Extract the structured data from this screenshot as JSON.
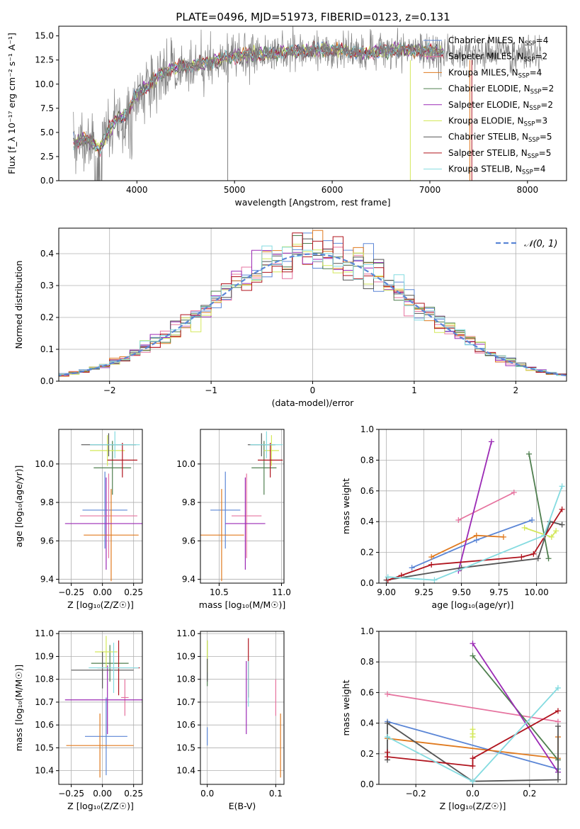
{
  "figure_title": "PLATE=0496, MJD=51973, FIBERID=0123, z=0.131",
  "models": [
    {
      "name": "Chabrier MILES",
      "nssp": "4",
      "color": "#5b86d6"
    },
    {
      "name": "Salpeter MILES",
      "nssp": "2",
      "color": "#e6739f"
    },
    {
      "name": "Kroupa MILES",
      "nssp": "4",
      "color": "#e07a1f"
    },
    {
      "name": "Chabrier ELODIE",
      "nssp": "2",
      "color": "#4f7f4f"
    },
    {
      "name": "Salpeter ELODIE",
      "nssp": "2",
      "color": "#9b2ab5"
    },
    {
      "name": "Kroupa ELODIE",
      "nssp": "3",
      "color": "#d4e85a"
    },
    {
      "name": "Chabrier STELIB",
      "nssp": "5",
      "color": "#555555"
    },
    {
      "name": "Salpeter STELIB",
      "nssp": "5",
      "color": "#b0141e"
    },
    {
      "name": "Kroupa STELIB",
      "nssp": "4",
      "color": "#84dbe0"
    }
  ],
  "chart_data": [
    {
      "id": "spectrum",
      "type": "line",
      "xlabel": "wavelength [Angstrom, rest frame]",
      "ylabel": "Flux [f_λ 10⁻¹⁷ erg cm⁻² s⁻¹ A⁻¹]",
      "xlim": [
        3200,
        8400
      ],
      "ylim": [
        0,
        16
      ],
      "xticks": [
        4000,
        5000,
        6000,
        7000,
        8000
      ],
      "yticks": [
        0.0,
        2.5,
        5.0,
        7.5,
        10.0,
        12.5,
        15.0
      ],
      "data_color": "#808080",
      "data_curve": {
        "x": [
          3350,
          3450,
          3550,
          3620,
          3700,
          3800,
          3900,
          3980,
          4100,
          4200,
          4350,
          4500,
          4700,
          4900,
          5100,
          5300,
          5500,
          5700,
          5900,
          6100,
          6300,
          6500,
          6700,
          6900,
          7100,
          7300,
          7500,
          7700,
          7900,
          8100
        ],
        "y": [
          3.9,
          4.3,
          4.0,
          3.2,
          5.0,
          6.5,
          6.8,
          8.8,
          9.6,
          10.8,
          11.6,
          11.8,
          12.2,
          12.7,
          13.1,
          13.0,
          13.3,
          13.4,
          13.6,
          13.5,
          13.2,
          13.4,
          13.6,
          13.5,
          13.3,
          13.1,
          13.2,
          13.3,
          13.1,
          13.0
        ]
      }
    },
    {
      "id": "residuals",
      "type": "step-histogram",
      "xlabel": "(data-model)/error",
      "ylabel": "Normed distribution",
      "xlim": [
        -2.5,
        2.5
      ],
      "ylim": [
        0,
        0.48
      ],
      "xticks": [
        -2,
        -1,
        0,
        1,
        2
      ],
      "yticks": [
        0.0,
        0.1,
        0.2,
        0.3,
        0.4
      ],
      "bin_width": 0.1,
      "curve_label": "𝒩(0, 1)",
      "curve_color": "#5b86d6"
    },
    {
      "id": "age-vs-Z",
      "type": "errorbar",
      "xlabel": "Z [log₁₀(Z/Z☉)]",
      "ylabel": "age  [log₁₀(age/yr)]",
      "xlim": [
        -0.35,
        0.32
      ],
      "ylim": [
        9.38,
        10.18
      ],
      "xticks": [
        -0.25,
        0.0,
        0.25
      ],
      "yticks": [
        9.4,
        9.6,
        9.8,
        10.0
      ],
      "points": [
        {
          "x": 0.02,
          "xerr": 0.18,
          "y": 9.76,
          "yerr": 0.2
        },
        {
          "x": 0.05,
          "xerr": 0.23,
          "y": 9.73,
          "yerr": 0.22
        },
        {
          "x": 0.07,
          "xerr": 0.22,
          "y": 9.63,
          "yerr": 0.24
        },
        {
          "x": 0.08,
          "xerr": 0.15,
          "y": 9.98,
          "yerr": 0.14
        },
        {
          "x": 0.03,
          "xerr": 0.33,
          "y": 9.69,
          "yerr": 0.24
        },
        {
          "x": 0.04,
          "xerr": 0.14,
          "y": 10.07,
          "yerr": 0.08
        },
        {
          "x": 0.05,
          "xerr": 0.22,
          "y": 10.1,
          "yerr": 0.06
        },
        {
          "x": 0.16,
          "xerr": 0.12,
          "y": 10.02,
          "yerr": 0.09
        },
        {
          "x": 0.1,
          "xerr": 0.2,
          "y": 10.1,
          "yerr": 0.07
        }
      ]
    },
    {
      "id": "age-vs-mass",
      "type": "errorbar",
      "xlabel": "mass [log₁₀(M/M☉)]",
      "ylabel": "",
      "xlim": [
        10.35,
        11.02
      ],
      "ylim": [
        9.38,
        10.18
      ],
      "xticks": [
        10.5,
        11.0
      ],
      "yticks": [
        9.4,
        9.6,
        9.8,
        10.0
      ],
      "points": [
        {
          "x": 10.55,
          "xerr": 0.12,
          "y": 9.76,
          "yerr": 0.2
        },
        {
          "x": 10.72,
          "xerr": 0.12,
          "y": 9.73,
          "yerr": 0.22
        },
        {
          "x": 10.52,
          "xerr": 0.18,
          "y": 9.63,
          "yerr": 0.24
        },
        {
          "x": 10.86,
          "xerr": 0.1,
          "y": 9.98,
          "yerr": 0.14
        },
        {
          "x": 10.71,
          "xerr": 0.16,
          "y": 9.69,
          "yerr": 0.24
        },
        {
          "x": 10.92,
          "xerr": 0.06,
          "y": 10.07,
          "yerr": 0.08
        },
        {
          "x": 10.84,
          "xerr": 0.11,
          "y": 10.1,
          "yerr": 0.06
        },
        {
          "x": 10.91,
          "xerr": 0.1,
          "y": 10.02,
          "yerr": 0.09
        },
        {
          "x": 10.88,
          "xerr": 0.13,
          "y": 10.1,
          "yerr": 0.07
        }
      ]
    },
    {
      "id": "mass-weight-vs-age",
      "type": "line",
      "xlabel": "age  [log₁₀(age/yr)]",
      "ylabel": "mass weight",
      "xlim": [
        8.95,
        10.2
      ],
      "ylim": [
        0,
        1.0
      ],
      "xticks": [
        9.0,
        9.25,
        9.5,
        9.75,
        10.0
      ],
      "yticks": [
        0.0,
        0.2,
        0.4,
        0.6,
        0.8,
        1.0
      ],
      "series": [
        {
          "x": [
            9.17,
            9.6,
            9.97
          ],
          "y": [
            0.1,
            0.28,
            0.41
          ]
        },
        {
          "x": [
            9.48,
            9.85
          ],
          "y": [
            0.41,
            0.59
          ]
        },
        {
          "x": [
            9.3,
            9.6,
            9.78
          ],
          "y": [
            0.17,
            0.31,
            0.3
          ]
        },
        {
          "x": [
            9.95,
            10.08
          ],
          "y": [
            0.84,
            0.16
          ]
        },
        {
          "x": [
            9.48,
            9.7
          ],
          "y": [
            0.08,
            0.92
          ]
        },
        {
          "x": [
            9.92,
            10.1,
            10.13
          ],
          "y": [
            0.36,
            0.3,
            0.34
          ]
        },
        {
          "x": [
            9.0,
            9.5,
            10.01,
            10.09,
            10.17
          ],
          "y": [
            0.02,
            0.1,
            0.16,
            0.4,
            0.38
          ]
        },
        {
          "x": [
            9.01,
            9.1,
            9.3,
            9.9,
            9.98,
            10.17
          ],
          "y": [
            0.02,
            0.05,
            0.12,
            0.17,
            0.19,
            0.48
          ]
        },
        {
          "x": [
            9.01,
            9.32,
            10.05,
            10.17
          ],
          "y": [
            0.04,
            0.02,
            0.31,
            0.63
          ]
        }
      ]
    },
    {
      "id": "mass-vs-Z",
      "type": "errorbar",
      "xlabel": "Z [log₁₀(Z/Z☉)]",
      "ylabel": "mass [log₁₀(M/M☉)]",
      "xlim": [
        -0.35,
        0.32
      ],
      "ylim": [
        10.34,
        11.01
      ],
      "xticks": [
        -0.25,
        0.0,
        0.25
      ],
      "yticks": [
        10.4,
        10.5,
        10.6,
        10.7,
        10.8,
        10.9,
        11.0
      ],
      "points": [
        {
          "x": 0.03,
          "xerr": 0.17,
          "y": 10.55,
          "yerr": 0.17
        },
        {
          "x": 0.18,
          "xerr": 0.03,
          "y": 10.72,
          "yerr": 0.08
        },
        {
          "x": -0.02,
          "xerr": 0.27,
          "y": 10.51,
          "yerr": 0.14
        },
        {
          "x": 0.06,
          "xerr": 0.15,
          "y": 10.87,
          "yerr": 0.08
        },
        {
          "x": 0.04,
          "xerr": 0.34,
          "y": 10.71,
          "yerr": 0.15
        },
        {
          "x": 0.03,
          "xerr": 0.09,
          "y": 10.92,
          "yerr": 0.07
        },
        {
          "x": 0.0,
          "xerr": 0.25,
          "y": 10.84,
          "yerr": 0.08
        },
        {
          "x": 0.13,
          "xerr": 0.17,
          "y": 10.85,
          "yerr": 0.12
        },
        {
          "x": 0.09,
          "xerr": 0.2,
          "y": 10.85,
          "yerr": 0.11
        }
      ]
    },
    {
      "id": "mass-vs-EBV",
      "type": "errorbar",
      "xlabel": "E(B-V)",
      "ylabel": "",
      "xlim": [
        -0.01,
        0.112
      ],
      "ylim": [
        10.34,
        11.01
      ],
      "xticks": [
        0.0,
        0.1
      ],
      "yticks": [
        10.4,
        10.5,
        10.6,
        10.7,
        10.8,
        10.9,
        11.0
      ],
      "points": [
        {
          "x": 0.0,
          "xerr": 0,
          "y": 10.55,
          "yerr": 0.04
        },
        {
          "x": 0.1,
          "xerr": 0,
          "y": 10.72,
          "yerr": 0.08
        },
        {
          "x": 0.107,
          "xerr": 0,
          "y": 10.51,
          "yerr": 0.14
        },
        {
          "x": 0.0,
          "xerr": 0,
          "y": 10.87,
          "yerr": 0.1
        },
        {
          "x": 0.057,
          "xerr": 0,
          "y": 10.72,
          "yerr": 0.16
        },
        {
          "x": 0.0,
          "xerr": 0,
          "y": 10.9,
          "yerr": 0.07
        },
        {
          "x": 0.0,
          "xerr": 0,
          "y": 10.84,
          "yerr": 0.05
        },
        {
          "x": 0.06,
          "xerr": 0,
          "y": 10.85,
          "yerr": 0.13
        },
        {
          "x": 0.06,
          "xerr": 0,
          "y": 10.78,
          "yerr": 0.1
        }
      ]
    },
    {
      "id": "mass-weight-vs-Z",
      "type": "line",
      "xlabel": "Z [log₁₀(Z/Z☉)]",
      "ylabel": "mass weight",
      "xlim": [
        -0.33,
        0.33
      ],
      "ylim": [
        0,
        1.0
      ],
      "xticks": [
        -0.2,
        0.0,
        0.2
      ],
      "yticks": [
        0.0,
        0.2,
        0.4,
        0.6,
        0.8,
        1.0
      ],
      "series": [
        {
          "x": [
            -0.3,
            0.3,
            0.3
          ],
          "y": [
            0.41,
            0.1,
            0.08
          ]
        },
        {
          "x": [
            -0.3,
            0.3
          ],
          "y": [
            0.59,
            0.41
          ]
        },
        {
          "x": [
            -0.3,
            0.3,
            0.3
          ],
          "y": [
            0.3,
            0.17,
            0.31
          ]
        },
        {
          "x": [
            0.0,
            0.3
          ],
          "y": [
            0.84,
            0.16
          ]
        },
        {
          "x": [
            0.0,
            0.3
          ],
          "y": [
            0.92,
            0.08
          ]
        },
        {
          "x": [
            0.0,
            0.0,
            0.0
          ],
          "y": [
            0.36,
            0.33,
            0.31
          ]
        },
        {
          "x": [
            -0.3,
            -0.3,
            0.0,
            0.3,
            0.3
          ],
          "y": [
            0.16,
            0.4,
            0.02,
            0.03,
            0.38
          ]
        },
        {
          "x": [
            -0.3,
            -0.3,
            0.0,
            0.0,
            0.3
          ],
          "y": [
            0.21,
            0.18,
            0.12,
            0.17,
            0.48
          ]
        },
        {
          "x": [
            -0.3,
            0.0,
            0.3
          ],
          "y": [
            0.31,
            0.02,
            0.63
          ]
        }
      ]
    }
  ]
}
